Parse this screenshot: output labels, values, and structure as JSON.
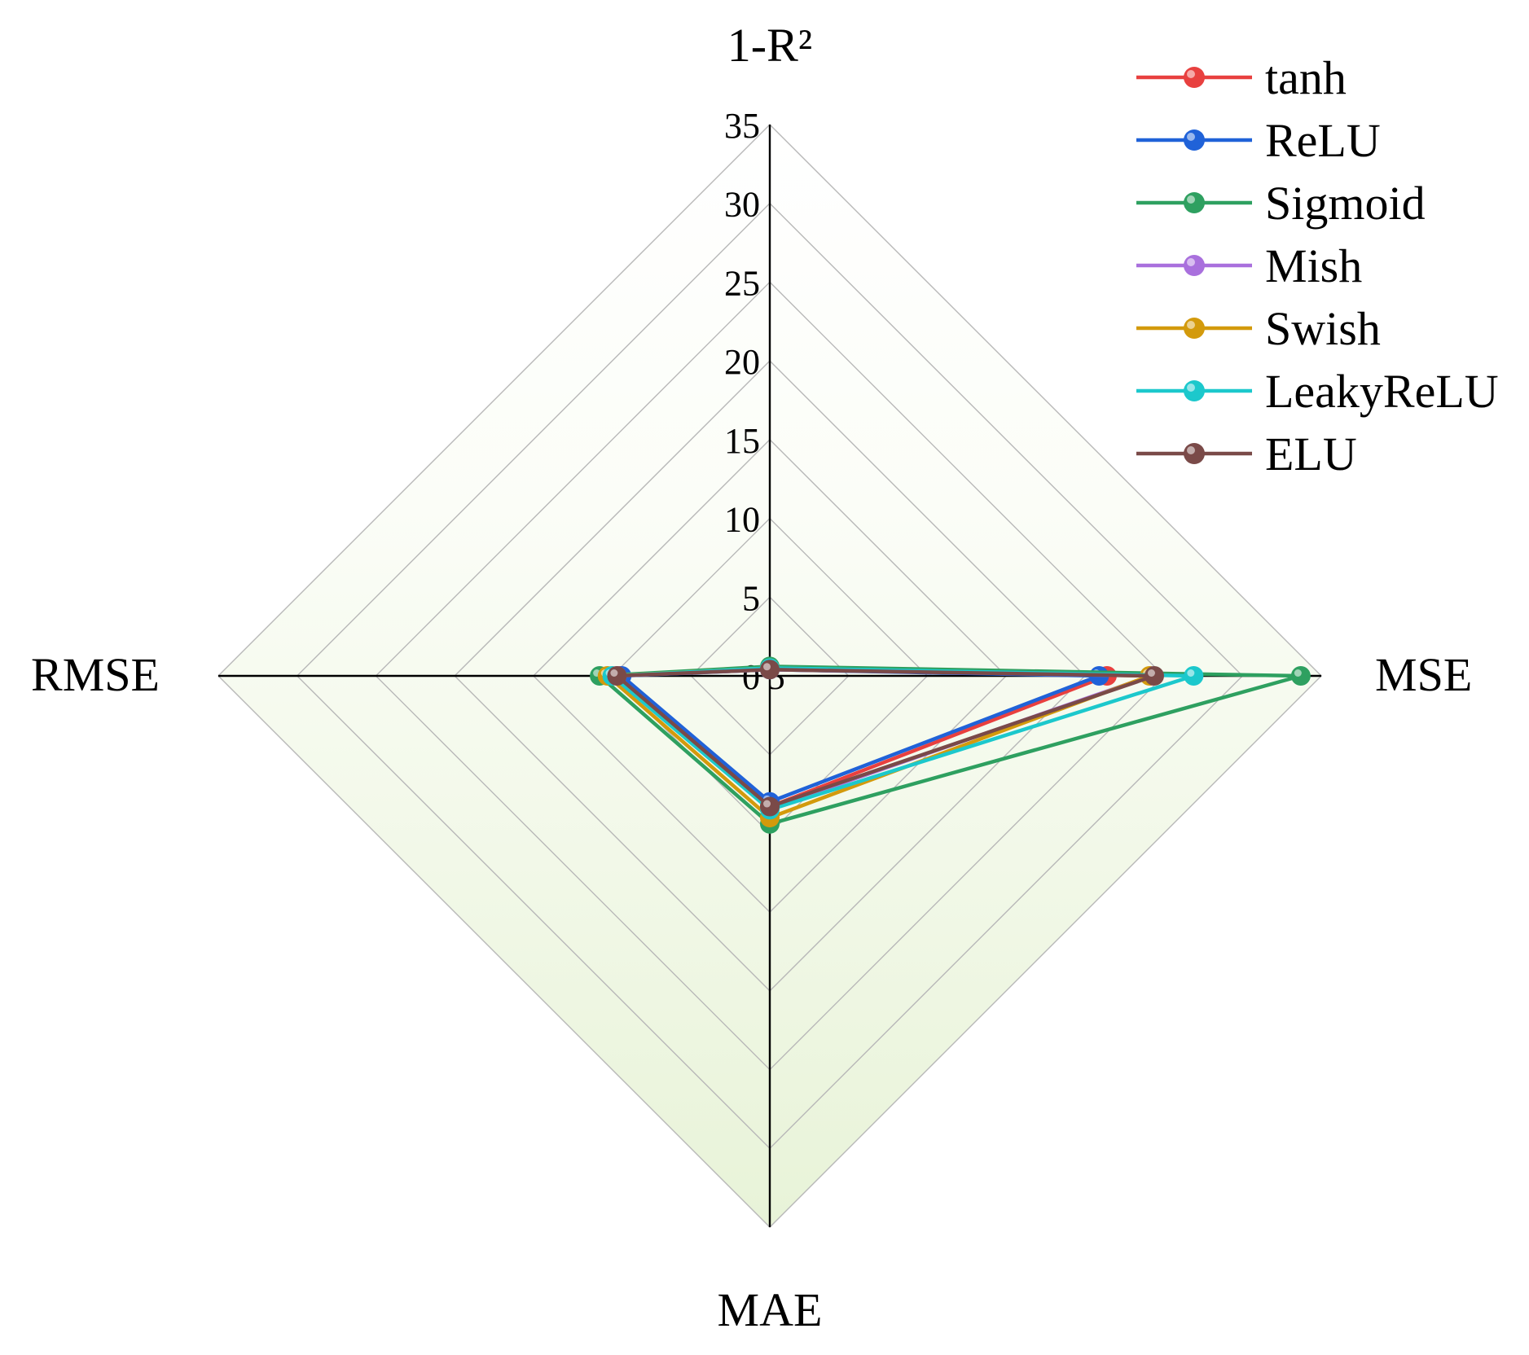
{
  "chart_data": {
    "type": "radar",
    "axes": [
      "1-R²",
      "MSE",
      "MAE",
      "RMSE"
    ],
    "rmax": 35,
    "ticks": [
      0,
      5,
      10,
      15,
      20,
      25,
      30,
      35
    ],
    "mse_tick_label": "5",
    "legend_position": "top-right",
    "series": [
      {
        "name": "tanh",
        "color": "#e8403f",
        "values": [
          0.5,
          21.4,
          8.3,
          9.5
        ]
      },
      {
        "name": "ReLU",
        "color": "#2062d8",
        "values": [
          0.4,
          20.9,
          8.0,
          9.4
        ]
      },
      {
        "name": "Sigmoid",
        "color": "#2ea060",
        "values": [
          0.6,
          33.7,
          9.4,
          10.8
        ]
      },
      {
        "name": "Mish",
        "color": "#a970dd",
        "values": [
          0.4,
          24.2,
          8.4,
          9.7
        ]
      },
      {
        "name": "Swish",
        "color": "#d39a0c",
        "values": [
          0.5,
          24.1,
          9.0,
          10.3
        ]
      },
      {
        "name": "LeakyReLU",
        "color": "#1cc8cc",
        "values": [
          0.5,
          26.9,
          8.5,
          10.0
        ]
      },
      {
        "name": "ELU",
        "color": "#7a4a48",
        "values": [
          0.4,
          24.4,
          8.3,
          9.7
        ]
      }
    ]
  }
}
